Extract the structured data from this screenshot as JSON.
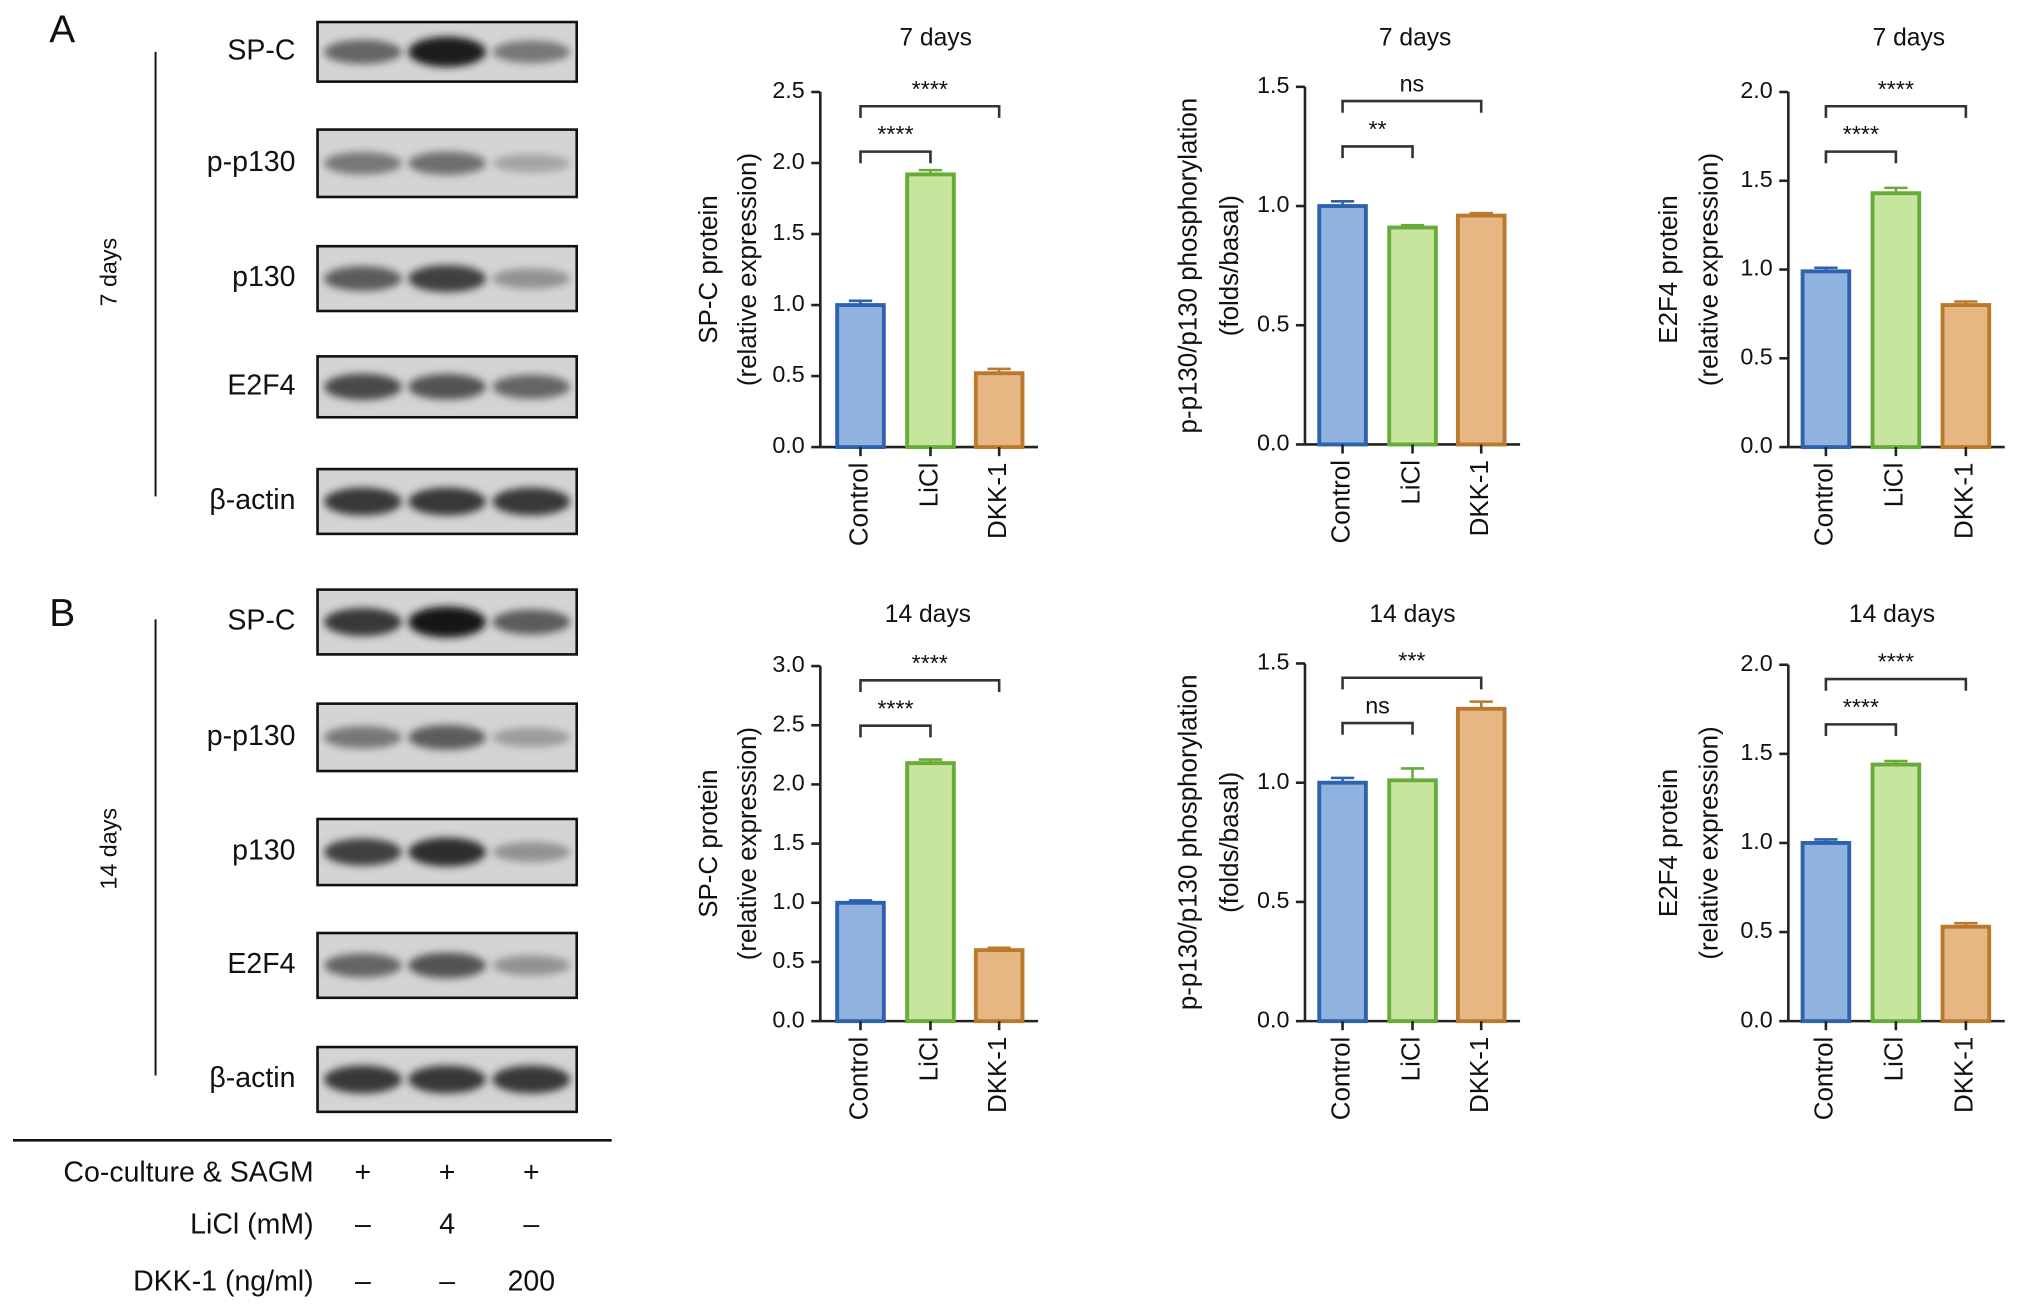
{
  "panels": [
    {
      "label": "A",
      "time": "7 days",
      "blot_rows": [
        "SP-C",
        "p-p130",
        "p130",
        "E2F4",
        "β-actin"
      ]
    },
    {
      "label": "B",
      "time": "14 days",
      "blot_rows": [
        "SP-C",
        "p-p130",
        "p130",
        "E2F4",
        "β-actin"
      ]
    }
  ],
  "treatments": [
    {
      "label": "Co-culture & SAGM",
      "cells": [
        "+",
        "+",
        "+"
      ]
    },
    {
      "label": "LiCl (mM)",
      "cells": [
        "–",
        "4",
        "–"
      ]
    },
    {
      "label": "DKK-1 (ng/ml)",
      "cells": [
        "–",
        "–",
        "200"
      ]
    }
  ],
  "chart_data": [
    {
      "type": "bar",
      "title": "7 days",
      "ylabel": [
        "SP-C protein",
        "(relative expression)"
      ],
      "categories": [
        "Control",
        "LiCl",
        "DKK-1"
      ],
      "values": [
        1.0,
        1.92,
        0.52
      ],
      "errors": [
        0.03,
        0.03,
        0.03
      ],
      "colors": [
        "#8fb2de",
        "#c8e59e",
        "#e6b783"
      ],
      "edge_colors": [
        "#2f62ae",
        "#68ab38",
        "#b97a2e"
      ],
      "ylim": [
        0,
        2.5
      ],
      "yticks": [
        {
          "value": 0,
          "label": "0.0"
        },
        {
          "value": 0.5,
          "label": "0.5"
        },
        {
          "value": 1,
          "label": "1.0"
        },
        {
          "value": 1.5,
          "label": "1.5"
        },
        {
          "value": 2,
          "label": "2.0"
        },
        2.5
      ],
      "comparisons": [
        {
          "label": "****",
          "pair": [
            0,
            1
          ]
        },
        {
          "label": "****",
          "pair": [
            0,
            2
          ]
        }
      ]
    },
    {
      "type": "bar",
      "title": "7 days",
      "ylabel": [
        "p-p130/p130 phosphorylation",
        "(folds/basal)"
      ],
      "categories": [
        "Control",
        "LiCl",
        "DKK-1"
      ],
      "values": [
        1.0,
        0.91,
        0.96
      ],
      "errors": [
        0.02,
        0.01,
        0.01
      ],
      "colors": [
        "#8fb2de",
        "#c8e59e",
        "#e6b783"
      ],
      "edge_colors": [
        "#2f62ae",
        "#68ab38",
        "#b97a2e"
      ],
      "ylim": [
        0,
        1.5
      ],
      "yticks": [
        {
          "value": 0,
          "label": "0.0"
        },
        0.5,
        {
          "value": 1,
          "label": "1.0"
        },
        1.5
      ],
      "comparisons": [
        {
          "label": "**",
          "pair": [
            0,
            1
          ]
        },
        {
          "label": "ns",
          "pair": [
            0,
            2
          ]
        }
      ]
    },
    {
      "type": "bar",
      "title": "7 days",
      "ylabel": [
        "E2F4 protein",
        "(relative expression)"
      ],
      "categories": [
        "Control",
        "LiCl",
        "DKK-1"
      ],
      "values": [
        0.99,
        1.43,
        0.8
      ],
      "errors": [
        0.02,
        0.03,
        0.02
      ],
      "colors": [
        "#8fb2de",
        "#c8e59e",
        "#e6b783"
      ],
      "edge_colors": [
        "#2f62ae",
        "#68ab38",
        "#b97a2e"
      ],
      "ylim": [
        0,
        2
      ],
      "yticks": [
        {
          "value": 0,
          "label": "0.0"
        },
        0.5,
        {
          "value": 1,
          "label": "1.0"
        },
        1.5,
        {
          "value": 2,
          "label": "2.0"
        }
      ],
      "comparisons": [
        {
          "label": "****",
          "pair": [
            0,
            1
          ]
        },
        {
          "label": "****",
          "pair": [
            0,
            2
          ]
        }
      ]
    },
    {
      "type": "bar",
      "title": "14 days",
      "ylabel": [
        "SP-C protein",
        "(relative expression)"
      ],
      "categories": [
        "Control",
        "LiCl",
        "DKK-1"
      ],
      "values": [
        1.0,
        2.18,
        0.6
      ],
      "errors": [
        0.02,
        0.03,
        0.02
      ],
      "colors": [
        "#8fb2de",
        "#c8e59e",
        "#e6b783"
      ],
      "edge_colors": [
        "#2f62ae",
        "#68ab38",
        "#b97a2e"
      ],
      "ylim": [
        0,
        3
      ],
      "yticks": [
        {
          "value": 0,
          "label": "0.0"
        },
        0.5,
        {
          "value": 1,
          "label": "1.0"
        },
        1.5,
        {
          "value": 2,
          "label": "2.0"
        },
        2.5,
        {
          "value": 3,
          "label": "3.0"
        }
      ],
      "comparisons": [
        {
          "label": "****",
          "pair": [
            0,
            1
          ]
        },
        {
          "label": "****",
          "pair": [
            0,
            2
          ]
        }
      ]
    },
    {
      "type": "bar",
      "title": "14 days",
      "ylabel": [
        "p-p130/p130 phosphorylation",
        "(folds/basal)"
      ],
      "categories": [
        "Control",
        "LiCl",
        "DKK-1"
      ],
      "values": [
        1.0,
        1.01,
        1.31
      ],
      "errors": [
        0.02,
        0.05,
        0.03
      ],
      "colors": [
        "#8fb2de",
        "#c8e59e",
        "#e6b783"
      ],
      "edge_colors": [
        "#2f62ae",
        "#68ab38",
        "#b97a2e"
      ],
      "ylim": [
        0,
        1.5
      ],
      "yticks": [
        {
          "value": 0,
          "label": "0.0"
        },
        0.5,
        {
          "value": 1,
          "label": "1.0"
        },
        1.5
      ],
      "comparisons": [
        {
          "label": "ns",
          "pair": [
            0,
            1
          ]
        },
        {
          "label": "***",
          "pair": [
            0,
            2
          ]
        }
      ]
    },
    {
      "type": "bar",
      "title": "14 days",
      "ylabel": [
        "E2F4 protein",
        "(relative expression)"
      ],
      "categories": [
        "Control",
        "LiCl",
        "DKK-1"
      ],
      "values": [
        1.0,
        1.44,
        0.53
      ],
      "errors": [
        0.02,
        0.02,
        0.02
      ],
      "colors": [
        "#8fb2de",
        "#c8e59e",
        "#e6b783"
      ],
      "edge_colors": [
        "#2f62ae",
        "#68ab38",
        "#b97a2e"
      ],
      "ylim": [
        0,
        2
      ],
      "yticks": [
        {
          "value": 0,
          "label": "0.0"
        },
        0.5,
        {
          "value": 1,
          "label": "1.0"
        },
        1.5,
        {
          "value": 2,
          "label": "2.0"
        }
      ],
      "comparisons": [
        {
          "label": "****",
          "pair": [
            0,
            1
          ]
        },
        {
          "label": "****",
          "pair": [
            0,
            2
          ]
        }
      ]
    }
  ]
}
